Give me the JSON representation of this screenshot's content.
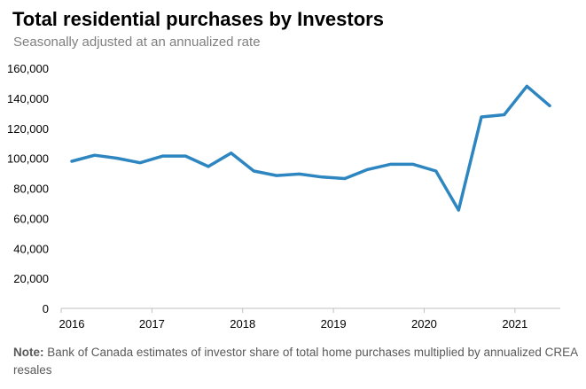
{
  "title": "Total residential purchases by Investors",
  "subtitle": "Seasonally adjusted at an annualized rate",
  "note_label": "Note:",
  "note_text": "Bank of Canada estimates of investor share of total home purchases multiplied by annualized CREA resales",
  "chart_data": {
    "type": "line",
    "title": "Total residential purchases by Investors",
    "subtitle": "Seasonally adjusted at an annualized rate",
    "xlabel": "",
    "ylabel": "",
    "ylim": [
      0,
      160000
    ],
    "yticks": [
      0,
      20000,
      40000,
      60000,
      80000,
      100000,
      120000,
      140000,
      160000
    ],
    "ytick_labels": [
      "0",
      "20,000",
      "40,000",
      "60,000",
      "80,000",
      "100,000",
      "120,000",
      "140,000",
      "160,000"
    ],
    "xtick_labels": [
      "2016",
      "2017",
      "2018",
      "2019",
      "2020",
      "2021"
    ],
    "grid": false,
    "legend": "none",
    "color": "#2E86C1",
    "categories": [
      "2016 Q1",
      "2016 Q2",
      "2016 Q3",
      "2016 Q4",
      "2017 Q1",
      "2017 Q2",
      "2017 Q3",
      "2017 Q4",
      "2018 Q1",
      "2018 Q2",
      "2018 Q3",
      "2018 Q4",
      "2019 Q1",
      "2019 Q2",
      "2019 Q3",
      "2019 Q4",
      "2020 Q1",
      "2020 Q2",
      "2020 Q3",
      "2020 Q4",
      "2021 Q1",
      "2021 Q2"
    ],
    "values": [
      98000,
      102000,
      100000,
      97000,
      101500,
      101500,
      94500,
      103500,
      91500,
      88500,
      89500,
      87500,
      86500,
      92500,
      96000,
      96000,
      91500,
      65500,
      127500,
      129000,
      148000,
      135000
    ]
  }
}
